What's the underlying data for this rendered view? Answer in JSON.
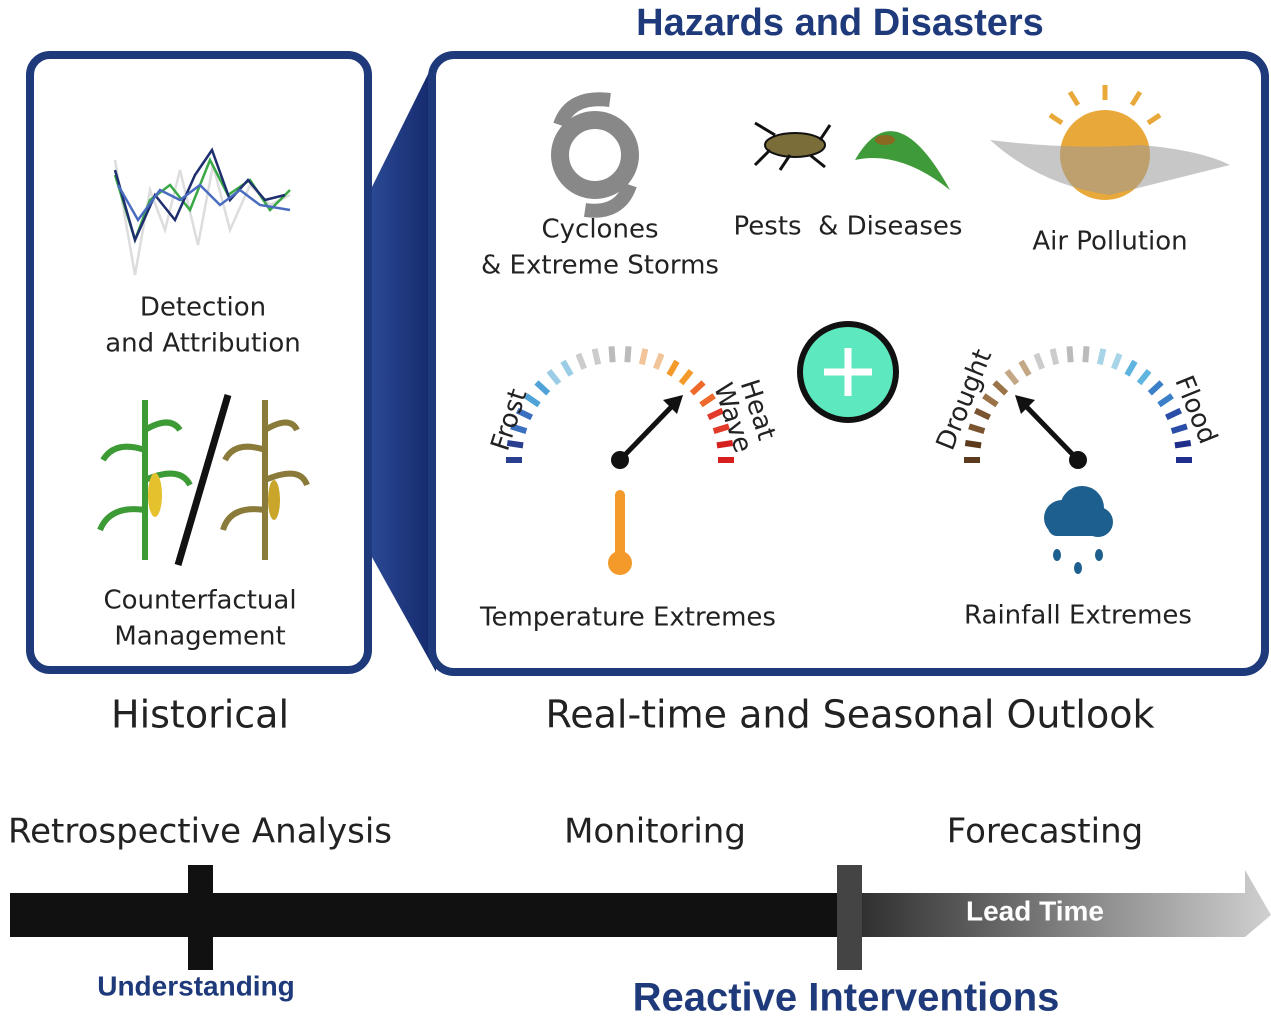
{
  "title": "Hazards and Disasters",
  "historical_panel": {
    "detection": [
      "Detection",
      "and Attribution"
    ],
    "counterfactual": [
      "Counterfactual",
      "Management"
    ],
    "label": "Historical"
  },
  "outlook_panel": {
    "label": "Real-time and Seasonal Outlook",
    "cyclones": [
      "Cyclones",
      "& Extreme Storms"
    ],
    "pests": "Pests  & Diseases",
    "air_pollution": "Air Pollution",
    "temperature": {
      "low": "Frost",
      "high": [
        "Heat",
        "Wave"
      ],
      "label": "Temperature Extremes"
    },
    "rainfall": {
      "low": "Drought",
      "high": "Flood",
      "label": "Rainfall Extremes"
    }
  },
  "timeline": {
    "stages": [
      "Retrospective Analysis",
      "Monitoring",
      "Forecasting"
    ],
    "lead_time": "Lead Time",
    "understanding": "Understanding",
    "reactive": "Reactive Interventions"
  }
}
